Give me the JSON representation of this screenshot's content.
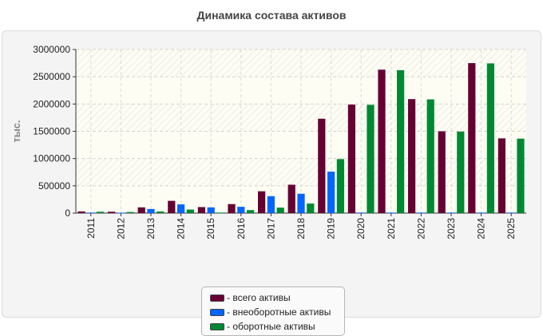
{
  "chart_data": {
    "type": "bar",
    "title": "Динамика состава активов",
    "ylabel": "тыс.",
    "xlabel": "",
    "ylim": [
      0,
      3000000
    ],
    "yticks": [
      0,
      500000,
      1000000,
      1500000,
      2000000,
      2500000,
      3000000
    ],
    "yticks_labels": [
      "0",
      "500000",
      "1000000",
      "1500000",
      "2000000",
      "2500000",
      "3000000"
    ],
    "grid": true,
    "legend_position": "bottom-center",
    "categories": [
      "2011",
      "2012",
      "2013",
      "2014",
      "2015",
      "2016",
      "2017",
      "2018",
      "2019",
      "2020",
      "2021",
      "2022",
      "2023",
      "2024",
      "2025"
    ],
    "series": [
      {
        "name": "всего активы",
        "color": "#660033",
        "values": [
          30000,
          25000,
          105000,
          225000,
          110000,
          165000,
          400000,
          520000,
          1730000,
          1990000,
          2630000,
          2090000,
          1500000,
          2750000,
          1370000
        ]
      },
      {
        "name": "внеоборотные активы",
        "color": "#0066ff",
        "values": [
          10000,
          8000,
          75000,
          160000,
          105000,
          115000,
          310000,
          355000,
          760000,
          10000,
          10000,
          10000,
          10000,
          10000,
          10000
        ]
      },
      {
        "name": "оборотные активы",
        "color": "#008833",
        "values": [
          25000,
          20000,
          30000,
          65000,
          10000,
          55000,
          100000,
          175000,
          990000,
          1985000,
          2620000,
          2085000,
          1495000,
          2745000,
          1365000
        ]
      }
    ]
  }
}
